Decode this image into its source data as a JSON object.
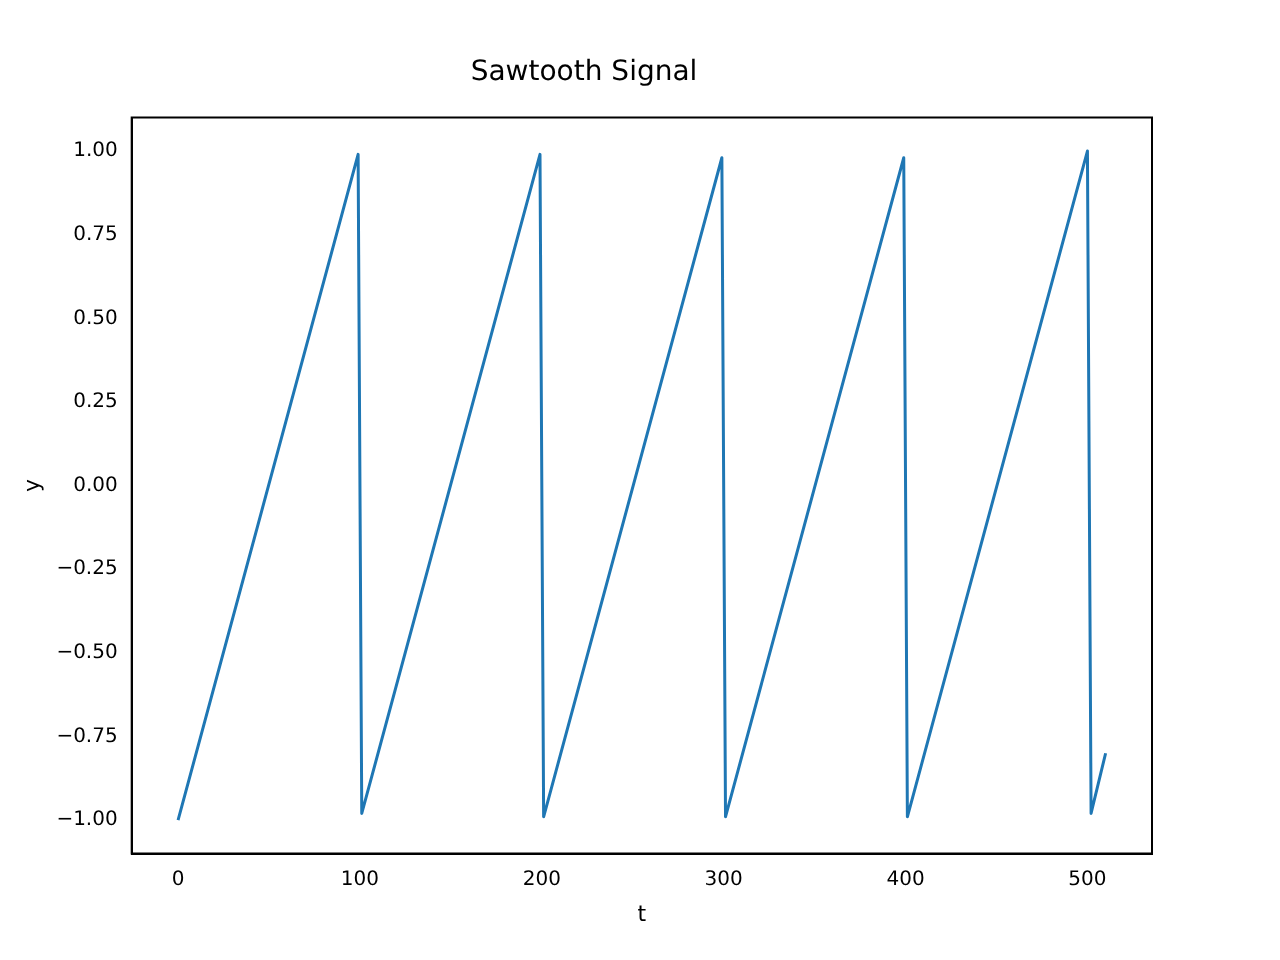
{
  "chart_data": {
    "type": "line",
    "title": "Sawtooth Signal",
    "xlabel": "t",
    "ylabel": "y",
    "x": [
      0,
      99,
      101,
      199,
      201,
      299,
      301,
      399,
      401,
      500,
      502,
      510
    ],
    "series": [
      {
        "color": "#1f77b4",
        "values": [
          -1,
          0.99,
          -0.98,
          0.99,
          -0.99,
          0.98,
          -0.99,
          0.98,
          -0.99,
          1.0,
          -0.98,
          -0.8
        ]
      }
    ],
    "xlim": [
      -25.5,
      535.5
    ],
    "xticks": [
      0,
      100,
      200,
      300,
      400,
      500
    ],
    "ylim": [
      -1.1,
      1.1
    ],
    "yticks": [
      {
        "value": -1,
        "label": "−1.00"
      },
      {
        "value": -0.75,
        "label": "−0.75"
      },
      {
        "value": -0.5,
        "label": "−0.50"
      },
      {
        "value": -0.25,
        "label": "−0.25"
      },
      {
        "value": 0,
        "label": "0.00"
      },
      {
        "value": 0.25,
        "label": "0.25"
      },
      {
        "value": 0.5,
        "label": "0.50"
      },
      {
        "value": 0.75,
        "label": "0.75"
      },
      {
        "value": 1,
        "label": "1.00"
      }
    ],
    "grid": false,
    "legend": false,
    "marker": "none",
    "line_style": "solid"
  }
}
